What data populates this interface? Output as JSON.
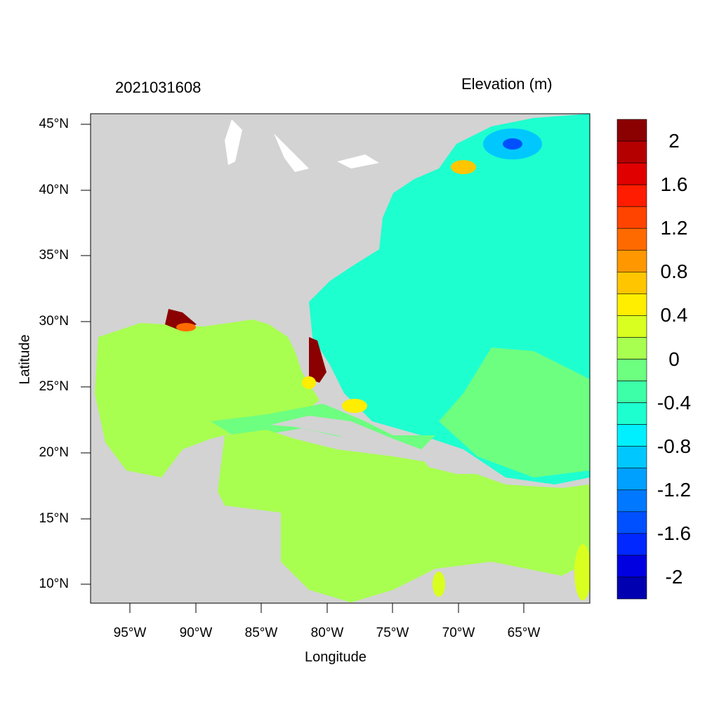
{
  "header": {
    "date_label": "2021031608",
    "colorbar_title": "Elevation (m)"
  },
  "axes": {
    "x_label": "Longitude",
    "y_label": "Latitude",
    "x_ticks": [
      "95°W",
      "90°W",
      "85°W",
      "80°W",
      "75°W",
      "70°W",
      "65°W"
    ],
    "y_ticks": [
      "45°N",
      "40°N",
      "35°N",
      "30°N",
      "25°N",
      "20°N",
      "15°N",
      "10°N"
    ]
  },
  "colorbar": {
    "labels": [
      "2",
      "1.6",
      "1.2",
      "0.8",
      "0.4",
      "0",
      "-0.4",
      "-0.8",
      "-1.2",
      "-1.6",
      "-2"
    ],
    "colors": [
      "#8b0000",
      "#b50000",
      "#e00000",
      "#ff1c00",
      "#ff4400",
      "#ff6a00",
      "#ff9800",
      "#ffc600",
      "#ffee00",
      "#d9ff20",
      "#a8ff50",
      "#6dff80",
      "#3cffa8",
      "#1effd0",
      "#00f0ff",
      "#00c8ff",
      "#00a0ff",
      "#0078ff",
      "#0050ff",
      "#0028ff",
      "#0000e0",
      "#0000b0"
    ]
  },
  "map": {
    "land_color": "#d3d3d3",
    "gulf_color": "#a8ff50",
    "atlantic_color": "#1effd0"
  }
}
